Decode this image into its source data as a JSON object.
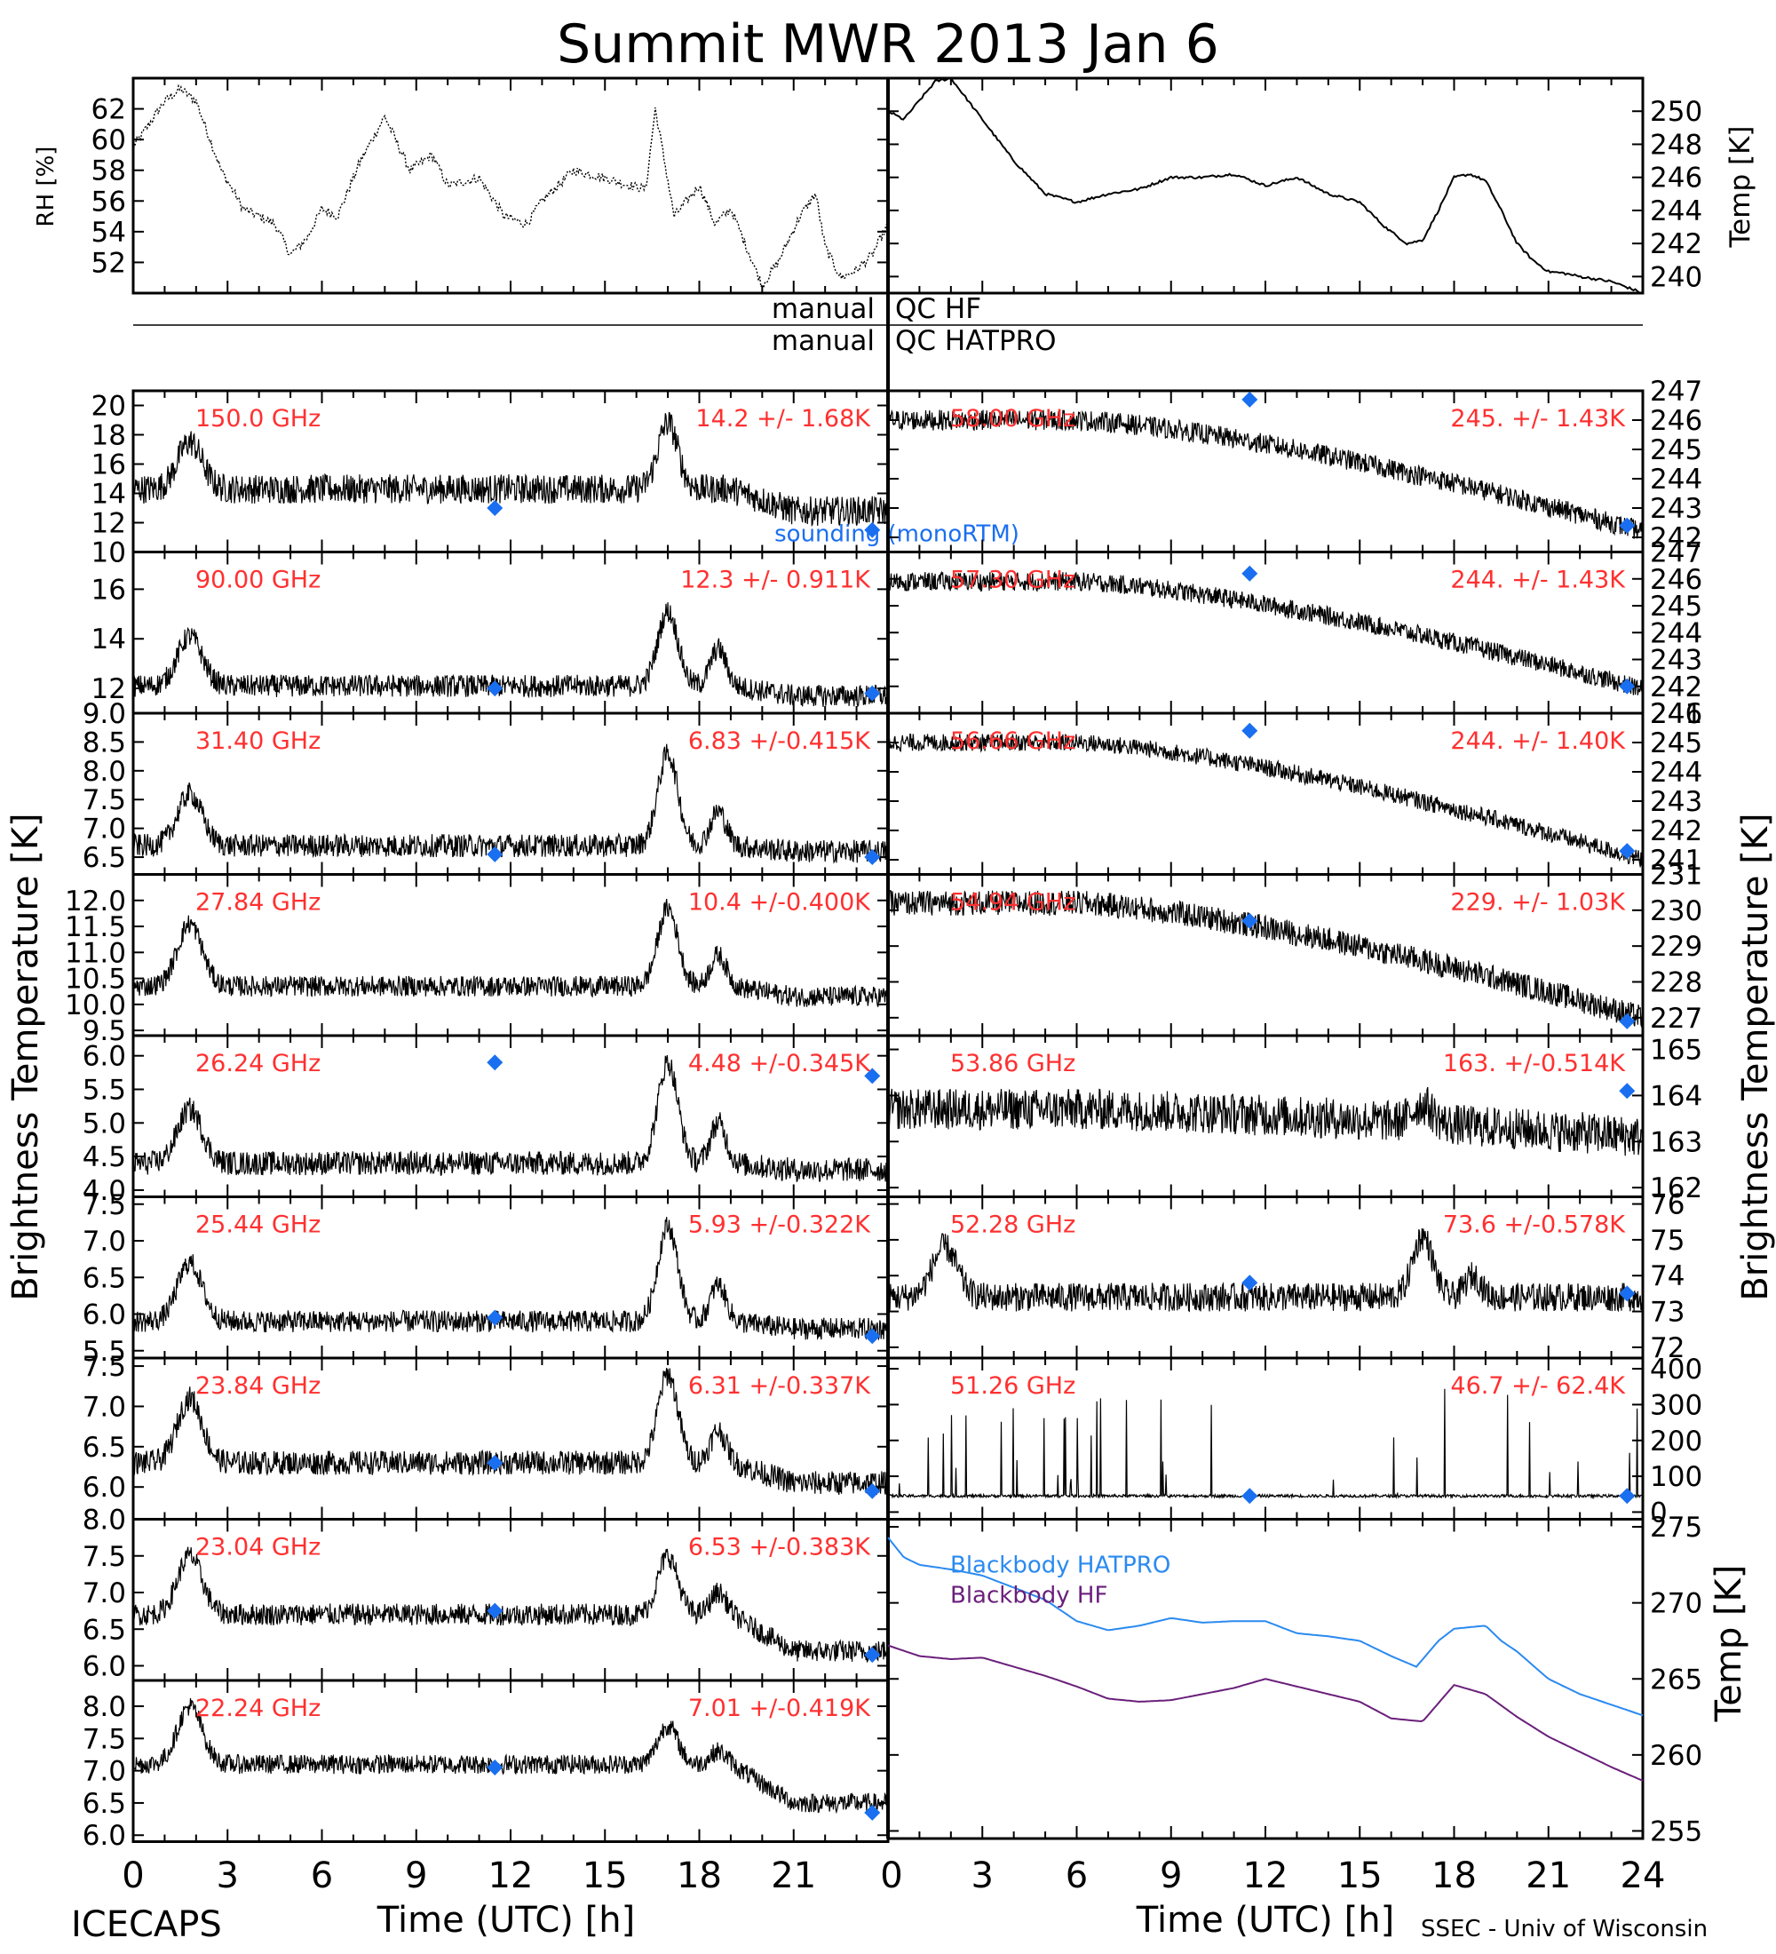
{
  "page": {
    "title": "Summit MWR 2013 Jan 6",
    "footer_left": "ICECAPS",
    "footer_right": "SSEC - Univ of Wisconsin",
    "qc_rows": [
      {
        "left": "manual",
        "right": "QC HF"
      },
      {
        "left": "manual",
        "right": "QC HATPRO"
      }
    ],
    "left_ylabel": "Brightness Temperature [K]",
    "right_ylabel": "Brightness Temperature [K]",
    "xlabel": "Time (UTC) [h]"
  },
  "colors": {
    "series": "#000000",
    "label": "#ff3030",
    "sounding": "#1a6ff0",
    "blackbody_hatpro": "#2a8af0",
    "blackbody_hf": "#6a1f7a"
  },
  "chart_data": [
    {
      "type": "line",
      "id": "rh",
      "ylabel": "RH [%]",
      "ylim": [
        50,
        64
      ],
      "yticks": [
        52,
        54,
        56,
        58,
        60,
        62
      ],
      "x": [
        0,
        1,
        1.5,
        2,
        2.8,
        3.5,
        4.5,
        5,
        5.5,
        6,
        6.5,
        7.2,
        8,
        8.8,
        9.5,
        10,
        11,
        11.8,
        12.5,
        13,
        14,
        15,
        15.8,
        16.3,
        16.6,
        17.2,
        18,
        18.5,
        19,
        19.5,
        20,
        20.5,
        21.2,
        21.7,
        22,
        22.5,
        23,
        23.5,
        24
      ],
      "y": [
        59.5,
        62.5,
        63.3,
        62.5,
        58,
        55.5,
        54.5,
        52.5,
        53.5,
        55.5,
        55,
        58.5,
        61.5,
        58,
        59,
        57,
        57.5,
        55,
        54.5,
        56,
        58,
        57.5,
        57,
        56.8,
        62,
        55,
        57,
        54.5,
        55.5,
        53,
        50.5,
        52,
        55,
        56.5,
        53,
        51,
        51.5,
        52.5,
        54.5
      ]
    },
    {
      "type": "line",
      "id": "temp",
      "ylabel": "Temp [K]",
      "ylim": [
        239,
        252
      ],
      "yticks": [
        240,
        242,
        244,
        246,
        248,
        250
      ],
      "x": [
        0,
        0.5,
        1.5,
        2,
        3,
        4,
        5,
        6,
        7,
        8,
        9,
        10,
        11,
        12,
        13,
        14,
        15,
        15.8,
        16.5,
        17,
        17.5,
        18,
        18.5,
        19,
        19.5,
        20,
        20.5,
        21,
        21.5,
        22,
        23,
        24
      ],
      "y": [
        250,
        249.5,
        251.8,
        252,
        249.5,
        247,
        245,
        244.5,
        245,
        245.3,
        246,
        246,
        246.2,
        245.5,
        246,
        245,
        244.5,
        243,
        242,
        242.2,
        244,
        246,
        246.2,
        245.8,
        244,
        242,
        241,
        240.3,
        240.2,
        240,
        239.7,
        239
      ]
    }
  ],
  "channels_left": [
    {
      "freq": "150.0 GHz",
      "stats": "14.2 +/- 1.68K",
      "ylim": [
        10,
        21
      ],
      "yticks": [
        10,
        12,
        14,
        16,
        18,
        20
      ],
      "base": 14.3,
      "noise": 1.0,
      "hump": 3.2,
      "bump": 4.5,
      "bump2": 0,
      "late": -1.5,
      "drift": 0,
      "sounding": [
        {
          "x": 11.5,
          "y": 13.0
        },
        {
          "x": 23.5,
          "y": 11.5
        }
      ],
      "note": "sounding (monoRTM)"
    },
    {
      "freq": "90.00 GHz",
      "stats": "12.3 +/- 0.911K",
      "ylim": [
        11,
        17.5
      ],
      "yticks": [
        12,
        14,
        16
      ],
      "base": 12.1,
      "noise": 0.45,
      "hump": 2.0,
      "bump": 3.0,
      "bump2": 1.5,
      "late": -0.4,
      "drift": 0,
      "sounding": [
        {
          "x": 11.5,
          "y": 12.0
        },
        {
          "x": 23.5,
          "y": 11.8
        }
      ]
    },
    {
      "freq": "31.40 GHz",
      "stats": "6.83 +/-0.415K",
      "ylim": [
        6.2,
        9.0
      ],
      "yticks": [
        6.5,
        7.0,
        7.5,
        8.0,
        8.5,
        9.0
      ],
      "base": 6.7,
      "noise": 0.2,
      "hump": 0.9,
      "bump": 1.6,
      "bump2": 0.6,
      "late": -0.1,
      "drift": 0,
      "sounding": [
        {
          "x": 11.5,
          "y": 6.55
        },
        {
          "x": 23.5,
          "y": 6.5
        }
      ]
    },
    {
      "freq": "27.84 GHz",
      "stats": "10.4 +/-0.400K",
      "ylim": [
        9.4,
        12.5
      ],
      "yticks": [
        9.5,
        10.0,
        10.5,
        11.0,
        11.5,
        12.0
      ],
      "base": 10.35,
      "noise": 0.2,
      "hump": 1.2,
      "bump": 1.5,
      "bump2": 0.6,
      "late": -0.2,
      "drift": 0,
      "sounding": []
    },
    {
      "freq": "26.24 GHz",
      "stats": "4.48 +/-0.345K",
      "ylim": [
        3.9,
        6.3
      ],
      "yticks": [
        4.0,
        4.5,
        5.0,
        5.5,
        6.0
      ],
      "base": 4.4,
      "noise": 0.18,
      "hump": 0.8,
      "bump": 1.5,
      "bump2": 0.6,
      "late": -0.1,
      "drift": 0,
      "sounding": [
        {
          "x": 11.5,
          "y": 5.9
        },
        {
          "x": 23.5,
          "y": 5.7
        }
      ]
    },
    {
      "freq": "25.44 GHz",
      "stats": "5.93 +/-0.322K",
      "ylim": [
        5.4,
        7.6
      ],
      "yticks": [
        5.5,
        6.0,
        6.5,
        7.0,
        7.5
      ],
      "base": 5.9,
      "noise": 0.15,
      "hump": 0.8,
      "bump": 1.3,
      "bump2": 0.5,
      "late": -0.1,
      "drift": 0,
      "sounding": [
        {
          "x": 11.5,
          "y": 5.95
        },
        {
          "x": 23.5,
          "y": 5.7
        }
      ]
    },
    {
      "freq": "23.84 GHz",
      "stats": "6.31 +/-0.337K",
      "ylim": [
        5.6,
        7.6
      ],
      "yticks": [
        6.0,
        6.5,
        7.0,
        7.5
      ],
      "base": 6.3,
      "noise": 0.15,
      "hump": 0.8,
      "bump": 1.1,
      "bump2": 0.4,
      "late": -0.25,
      "drift": 0,
      "sounding": [
        {
          "x": 11.5,
          "y": 6.3
        },
        {
          "x": 23.5,
          "y": 5.95
        }
      ]
    },
    {
      "freq": "23.04 GHz",
      "stats": "6.53 +/-0.383K",
      "ylim": [
        5.8,
        8.0
      ],
      "yticks": [
        6.0,
        6.5,
        7.0,
        7.5,
        8.0
      ],
      "base": 6.7,
      "noise": 0.15,
      "hump": 0.8,
      "bump": 0.8,
      "bump2": 0.3,
      "late": -0.5,
      "drift": 0,
      "sounding": [
        {
          "x": 11.5,
          "y": 6.75
        },
        {
          "x": 23.5,
          "y": 6.15
        }
      ]
    },
    {
      "freq": "22.24 GHz",
      "stats": "7.01 +/-0.419K",
      "ylim": [
        5.9,
        8.4
      ],
      "yticks": [
        6.0,
        6.5,
        7.0,
        7.5,
        8.0
      ],
      "base": 7.1,
      "noise": 0.15,
      "hump": 0.9,
      "bump": 0.6,
      "bump2": 0.2,
      "late": -0.6,
      "drift": 0,
      "sounding": [
        {
          "x": 11.5,
          "y": 7.05
        },
        {
          "x": 23.5,
          "y": 6.35
        }
      ]
    }
  ],
  "channels_right": [
    {
      "freq": "58.00 GHz",
      "stats": "245. +/- 1.43K",
      "ylim": [
        241.5,
        247
      ],
      "yticks": [
        242,
        243,
        244,
        245,
        246,
        247
      ],
      "base": 246.0,
      "noise": 0.35,
      "hump": 0,
      "bump": 0,
      "bump2": 0,
      "late": 0,
      "drift": -3.8,
      "sounding": [
        {
          "x": 11.5,
          "y": 246.7
        },
        {
          "x": 23.5,
          "y": 242.4
        }
      ]
    },
    {
      "freq": "57.30 GHz",
      "stats": "244. +/- 1.43K",
      "ylim": [
        241,
        247
      ],
      "yticks": [
        241,
        242,
        243,
        244,
        245,
        246,
        247
      ],
      "base": 245.9,
      "noise": 0.35,
      "hump": 0,
      "bump": 0,
      "bump2": 0,
      "late": 0,
      "drift": -4.0,
      "sounding": [
        {
          "x": 11.5,
          "y": 246.2
        },
        {
          "x": 23.5,
          "y": 242.0
        }
      ]
    },
    {
      "freq": "56.66 GHz",
      "stats": "244. +/- 1.40K",
      "ylim": [
        240.5,
        246
      ],
      "yticks": [
        241,
        242,
        243,
        244,
        245,
        246
      ],
      "base": 245.0,
      "noise": 0.3,
      "hump": 0,
      "bump": 0,
      "bump2": 0,
      "late": 0,
      "drift": -4.0,
      "sounding": [
        {
          "x": 11.5,
          "y": 245.4
        },
        {
          "x": 23.5,
          "y": 241.3
        }
      ]
    },
    {
      "freq": "54.94 GHz",
      "stats": "229. +/- 1.03K",
      "ylim": [
        226.5,
        231
      ],
      "yticks": [
        227,
        228,
        229,
        230,
        231
      ],
      "base": 230.2,
      "noise": 0.35,
      "hump": 0,
      "bump": 0,
      "bump2": 0,
      "late": 0,
      "drift": -3.2,
      "sounding": [
        {
          "x": 11.5,
          "y": 229.7
        },
        {
          "x": 23.5,
          "y": 226.9
        }
      ]
    },
    {
      "freq": "53.86 GHz",
      "stats": "163. +/-0.514K",
      "ylim": [
        161.8,
        165.3
      ],
      "yticks": [
        162,
        163,
        164,
        165
      ],
      "base": 163.7,
      "noise": 0.45,
      "hump": 0,
      "bump": 0.4,
      "bump2": 0,
      "late": 0,
      "drift": -0.6,
      "sounding": [
        {
          "x": 23.5,
          "y": 164.1
        }
      ]
    },
    {
      "freq": "52.28 GHz",
      "stats": "73.6 +/-0.578K",
      "ylim": [
        71.7,
        76.2
      ],
      "yticks": [
        72,
        73,
        74,
        75,
        76
      ],
      "base": 73.4,
      "noise": 0.4,
      "hump": 1.4,
      "bump": 1.7,
      "bump2": 0.6,
      "late": 0,
      "drift": 0,
      "sounding": [
        {
          "x": 11.5,
          "y": 73.8
        },
        {
          "x": 23.5,
          "y": 73.5
        }
      ]
    },
    {
      "freq": "51.26 GHz",
      "stats": "46.7 +/- 62.4K",
      "ylim": [
        -20,
        430
      ],
      "yticks": [
        0,
        100,
        200,
        300,
        400
      ],
      "base": 45,
      "noise": 4,
      "hump": 0,
      "bump": 0,
      "bump2": 0,
      "late": 0,
      "drift": 0,
      "spikes": true,
      "sounding": [
        {
          "x": 11.5,
          "y": 45
        },
        {
          "x": 23.5,
          "y": 45
        }
      ]
    }
  ],
  "blackbody": {
    "ylabel": "Temp [K]",
    "ylim": [
      254.5,
      275.5
    ],
    "yticks": [
      255,
      260,
      265,
      270,
      275
    ],
    "series": [
      {
        "name": "Blackbody HATPRO",
        "color": "#2a8af0",
        "x": [
          0,
          0.5,
          1,
          2,
          3,
          4,
          5,
          6,
          7,
          8,
          9,
          10,
          11,
          12,
          13,
          14,
          15,
          16,
          16.8,
          17.5,
          18,
          19,
          19.5,
          20,
          21,
          22,
          23,
          24
        ],
        "y": [
          274.3,
          273,
          272.5,
          272.2,
          271.8,
          271,
          270.2,
          268.8,
          268.2,
          268.5,
          269,
          268.7,
          268.8,
          268.8,
          268,
          267.8,
          267.5,
          266.5,
          265.8,
          267.5,
          268.3,
          268.5,
          267.5,
          266.8,
          265,
          264,
          263.3,
          262.6
        ]
      },
      {
        "name": "Blackbody HF",
        "color": "#6a1f7a",
        "x": [
          0,
          1,
          2,
          3,
          4,
          5,
          6,
          7,
          8,
          9,
          10,
          11,
          12,
          13,
          14,
          15,
          16,
          17,
          18,
          19,
          20,
          21,
          22,
          23,
          24
        ],
        "y": [
          267.2,
          266.5,
          266.3,
          266.4,
          265.8,
          265.2,
          264.5,
          263.7,
          263.5,
          263.6,
          264,
          264.4,
          265,
          264.5,
          264,
          263.5,
          262.4,
          262.2,
          264.6,
          264,
          262.5,
          261.2,
          260.2,
          259.2,
          258.3
        ]
      }
    ]
  },
  "x_axis": {
    "xlim": [
      0,
      24
    ],
    "left_ticks": [
      "0",
      "3",
      "6",
      "9",
      "12",
      "15",
      "18",
      "21"
    ],
    "right_ticks": [
      "0",
      "3",
      "6",
      "9",
      "12",
      "15",
      "18",
      "21",
      "24"
    ]
  }
}
